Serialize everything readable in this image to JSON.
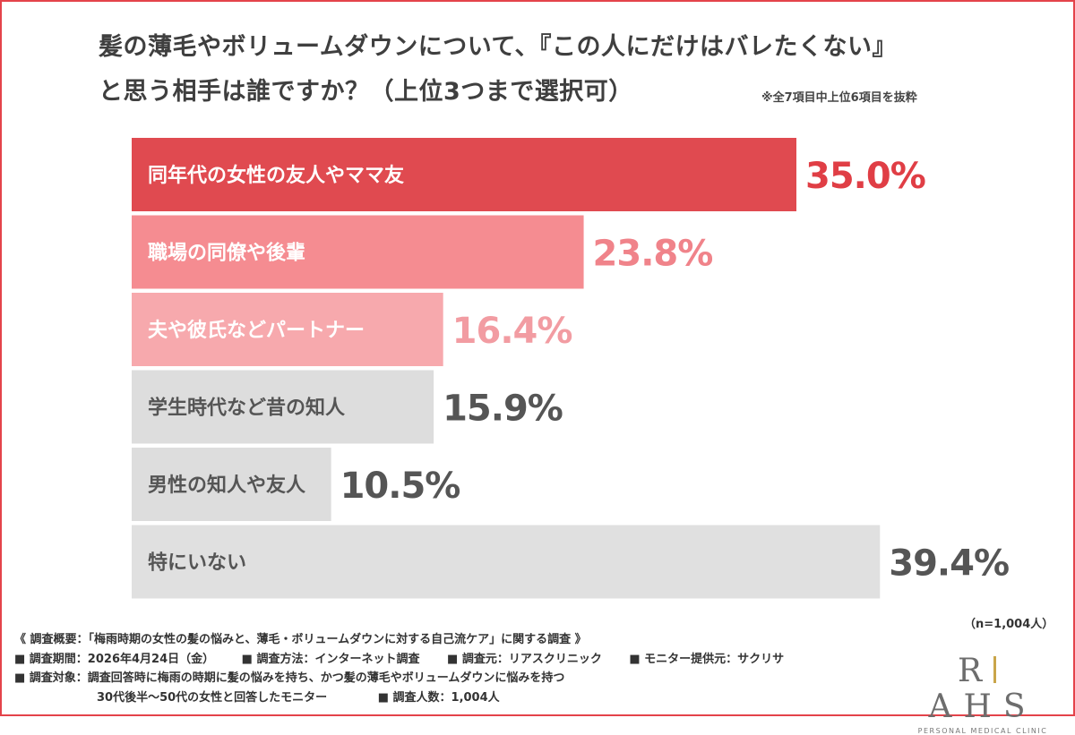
{
  "title": {
    "line1": "髪の薄毛やボリュームダウンについて、『この人にだけはバレたくない』",
    "line2": "と思う相手は誰ですか？（上位3つまで選択可）"
  },
  "note": "※全7項目中上位6項目を抜粋",
  "chart_data": {
    "type": "bar",
    "orientation": "horizontal",
    "categories": [
      "同年代の女性の友人やママ友",
      "職場の同僚や後輩",
      "夫や彼氏などパートナー",
      "学生時代など昔の知人",
      "男性の知人や友人",
      "特にいない"
    ],
    "values": [
      35.0,
      23.8,
      16.4,
      15.9,
      10.5,
      39.4
    ],
    "value_labels": [
      "35.0%",
      "23.8%",
      "16.4%",
      "15.9%",
      "10.5%",
      "39.4%"
    ],
    "bar_colors": [
      "#e04a50",
      "#f58c91",
      "#f7a9ad",
      "#dddddd",
      "#dddddd",
      "#e0e0e0"
    ],
    "label_colors": [
      "#ffffff",
      "#ffffff",
      "#ffffff",
      "#555555",
      "#555555",
      "#555555"
    ],
    "value_colors": [
      "#e03e45",
      "#f0838a",
      "#f29ca2",
      "#555555",
      "#555555",
      "#555555"
    ],
    "xlim": [
      0,
      40
    ],
    "grid": false,
    "legend": "none"
  },
  "sample_size": "（n=1,004人）",
  "survey": {
    "overview": "《 調査概要：「梅雨時期の女性の髪の悩みと、薄毛・ボリュームダウンに対する自己流ケア」に関する調査 》",
    "period": "■ 調査期間：2026年4月24日（金）",
    "method": "■ 調査方法：インターネット調査",
    "source": "■ 調査元：リアスクリニック",
    "provider": "■ モニター提供元：サクリサ",
    "target": "■ 調査対象：調査回答時に梅雨の時期に髪の悩みを持ち、かつ髪の薄毛やボリュームダウンに悩みを持つ",
    "target2": "30代後半〜50代の女性と回答したモニター",
    "count": "■ 調査人数：1,004人"
  },
  "logo": {
    "mark_left": "R",
    "mark_right": "AHS",
    "sub": "PERSONAL MEDICAL CLINIC",
    "accent": "#c9a54a"
  }
}
